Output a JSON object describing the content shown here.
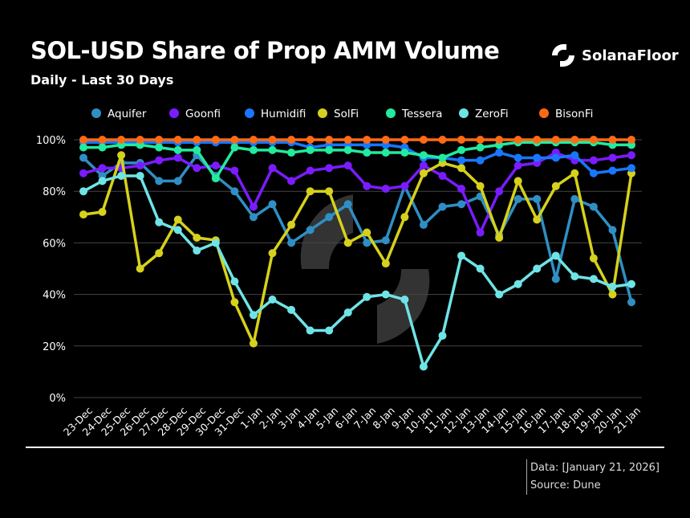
{
  "header": {
    "title": "SOL-USD Share of Prop AMM Volume",
    "subtitle": "Daily - Last 30 Days",
    "brand": "SolanaFloor"
  },
  "footer": {
    "data_note": "Data: [January 21, 2026]",
    "source": "Source: Dune"
  },
  "chart_data": {
    "type": "line",
    "title": "SOL-USD Share of Prop AMM Volume",
    "subtitle": "Daily - Last 30 Days",
    "xlabel": "",
    "ylabel": "",
    "ylim": [
      0,
      100
    ],
    "yticks": [
      "0%",
      "20%",
      "40%",
      "60%",
      "80%",
      "100%"
    ],
    "grid": true,
    "legend": "top",
    "categories": [
      "23-Dec",
      "24-Dec",
      "25-Dec",
      "26-Dec",
      "27-Dec",
      "28-Dec",
      "29-Dec",
      "30-Dec",
      "31-Dec",
      "1-Jan",
      "2-Jan",
      "3-Jan",
      "4-Jan",
      "5-Jan",
      "6-Jan",
      "7-Jan",
      "8-Jan",
      "9-Jan",
      "10-Jan",
      "11-Jan",
      "12-Jan",
      "13-Jan",
      "14-Jan",
      "15-Jan",
      "16-Jan",
      "17-Jan",
      "18-Jan",
      "19-Jan",
      "20-Jan",
      "21-Jan"
    ],
    "series": [
      {
        "name": "Aquifer",
        "color": "#2f8fc4",
        "values": [
          93,
          86,
          91,
          91,
          84,
          84,
          94,
          86,
          80,
          70,
          75,
          60,
          65,
          70,
          75,
          60,
          61,
          82,
          67,
          74,
          75,
          78,
          63,
          77,
          77,
          46,
          77,
          74,
          65,
          37
        ]
      },
      {
        "name": "Goonfi",
        "color": "#7a1cff",
        "values": [
          87,
          89,
          89,
          90,
          92,
          93,
          89,
          90,
          88,
          74,
          89,
          84,
          88,
          89,
          90,
          82,
          81,
          82,
          90,
          86,
          81,
          64,
          80,
          90,
          91,
          95,
          92,
          92,
          93,
          94
        ]
      },
      {
        "name": "Humidifi",
        "color": "#1877ff",
        "values": [
          99,
          99,
          99,
          99,
          99,
          99,
          99,
          99,
          99,
          99,
          99,
          99,
          97,
          98,
          98,
          98,
          98,
          97,
          93,
          93,
          92,
          92,
          95,
          93,
          93,
          93,
          94,
          87,
          88,
          89
        ]
      },
      {
        "name": "SolFi",
        "color": "#d6d11c",
        "values": [
          71,
          72,
          94,
          50,
          56,
          69,
          62,
          61,
          37,
          21,
          56,
          67,
          80,
          80,
          60,
          64,
          52,
          70,
          87,
          91,
          89,
          82,
          62,
          84,
          69,
          82,
          87,
          54,
          40,
          87
        ]
      },
      {
        "name": "Tessera",
        "color": "#22eb9e",
        "values": [
          97,
          97,
          98,
          98,
          97,
          96,
          96,
          85,
          97,
          96,
          96,
          95,
          96,
          96,
          96,
          95,
          95,
          95,
          94,
          93,
          96,
          97,
          98,
          99,
          99,
          99,
          99,
          99,
          98,
          98
        ]
      },
      {
        "name": "ZeroFi",
        "color": "#6fe4e6",
        "values": [
          80,
          84,
          86,
          86,
          68,
          65,
          57,
          60,
          45,
          32,
          38,
          34,
          26,
          26,
          33,
          39,
          40,
          38,
          12,
          24,
          55,
          50,
          40,
          44,
          50,
          55,
          47,
          46,
          43,
          44
        ]
      },
      {
        "name": "BisonFi",
        "color": "#ff6a14",
        "values": [
          100,
          100,
          100,
          100,
          100,
          100,
          100,
          100,
          100,
          100,
          100,
          100,
          100,
          100,
          100,
          100,
          100,
          100,
          100,
          100,
          100,
          100,
          100,
          100,
          100,
          100,
          100,
          100,
          100,
          100
        ]
      }
    ]
  }
}
